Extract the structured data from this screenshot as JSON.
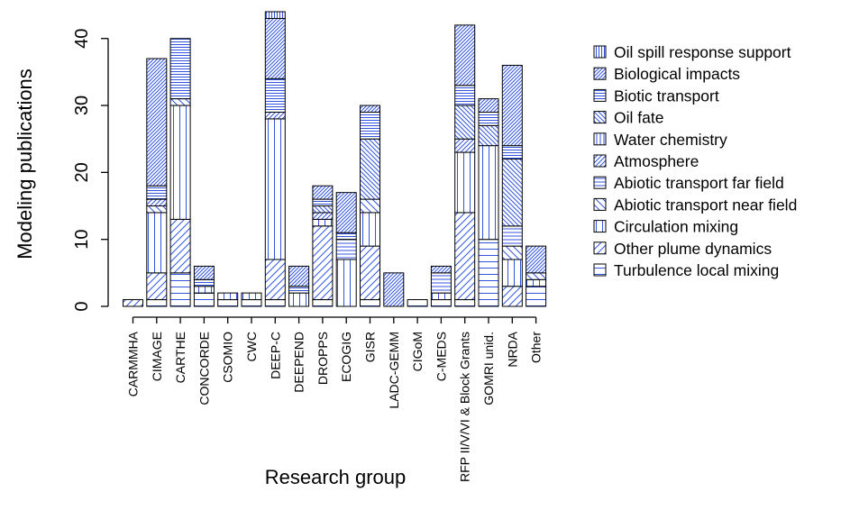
{
  "chart_data": {
    "type": "bar",
    "stacked": true,
    "xlabel": "Research group",
    "ylabel": "Modeling publications",
    "ylim": [
      0,
      44
    ],
    "yticks": [
      0,
      10,
      20,
      30,
      40
    ],
    "legend_position": "right",
    "bar_color": "#3355dd",
    "categories": [
      "CARMMHA",
      "CIMAGE",
      "CARTHE",
      "CONCORDE",
      "CSOMIO",
      "CWC",
      "DEEP-C",
      "DEEPEND",
      "DROPPS",
      "ECOGIG",
      "GISR",
      "LADC-GEMM",
      "CIGoM",
      "C-MEDS",
      "RFP II/V/VI & Block Grants",
      "GOMRI unid.",
      "NRDA",
      "Other"
    ],
    "series": [
      {
        "name": "Turbulence local mixing",
        "pattern": "hlines",
        "values": [
          0,
          1,
          5,
          2,
          1,
          1,
          1,
          0,
          1,
          0,
          1,
          0,
          1,
          1,
          1,
          10,
          0,
          3
        ]
      },
      {
        "name": "Other plume dynamics",
        "pattern": "diag-up",
        "values": [
          1,
          4,
          8,
          0,
          0,
          0,
          6,
          0,
          11,
          0,
          8,
          0,
          0,
          0,
          13,
          0,
          3,
          0
        ]
      },
      {
        "name": "Circulation mixing",
        "pattern": "vlines",
        "values": [
          0,
          9,
          17,
          1,
          1,
          1,
          21,
          2,
          1,
          7,
          5,
          0,
          0,
          1,
          9,
          14,
          4,
          1
        ]
      },
      {
        "name": "Abiotic transport  near field",
        "pattern": "diag-down",
        "values": [
          0,
          1,
          1,
          0,
          0,
          0,
          0,
          0,
          0,
          0,
          2,
          0,
          0,
          0,
          0,
          0,
          2,
          1
        ]
      },
      {
        "name": "Abiotic transport  far field",
        "pattern": "hlines-dense",
        "values": [
          0,
          0,
          0,
          0,
          0,
          0,
          0,
          0,
          0,
          3,
          0,
          0,
          0,
          3,
          0,
          0,
          3,
          0
        ]
      },
      {
        "name": "Atmosphere",
        "pattern": "diag-up-dense",
        "values": [
          0,
          1,
          0,
          0,
          0,
          0,
          1,
          0,
          1,
          0,
          0,
          0,
          0,
          0,
          2,
          0,
          0,
          0
        ]
      },
      {
        "name": "Water chemistry",
        "pattern": "vlines-dense",
        "values": [
          0,
          0,
          0,
          0,
          0,
          0,
          0,
          0,
          0,
          0,
          0,
          0,
          0,
          0,
          0,
          0,
          0,
          0
        ]
      },
      {
        "name": "Oil fate",
        "pattern": "diag-down-dense",
        "values": [
          0,
          0,
          0,
          0,
          0,
          0,
          0,
          0,
          1,
          0,
          9,
          0,
          0,
          0,
          5,
          3,
          10,
          0
        ]
      },
      {
        "name": "Biotic transport",
        "pattern": "hlines-xdense",
        "values": [
          0,
          2,
          9,
          1,
          0,
          0,
          5,
          1,
          1,
          1,
          4,
          0,
          0,
          0,
          3,
          2,
          2,
          0
        ]
      },
      {
        "name": "Biological impacts",
        "pattern": "diag-up-xdense",
        "values": [
          0,
          19,
          0,
          2,
          0,
          0,
          9,
          3,
          2,
          6,
          1,
          5,
          0,
          1,
          9,
          2,
          12,
          4
        ]
      },
      {
        "name": "Oil spill response support",
        "pattern": "vlines-xdense",
        "values": [
          0,
          0,
          0,
          0,
          0,
          0,
          1,
          0,
          0,
          0,
          0,
          0,
          0,
          0,
          0,
          0,
          0,
          0
        ]
      }
    ]
  }
}
